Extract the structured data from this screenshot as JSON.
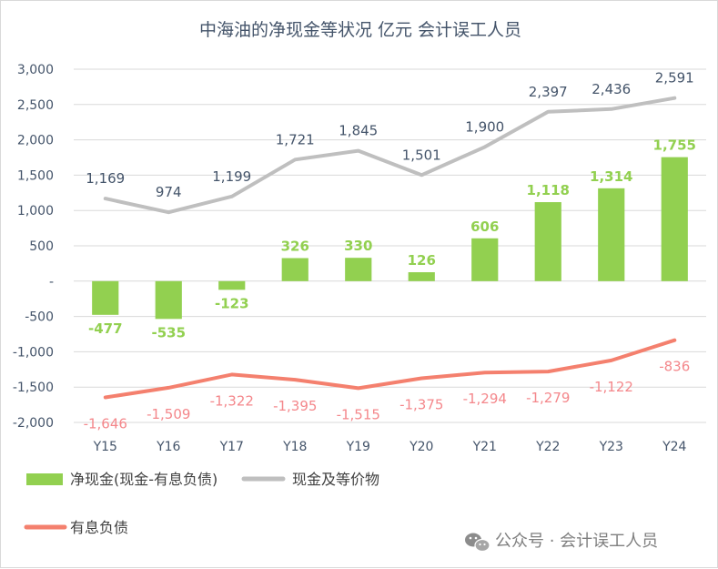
{
  "chart_data": {
    "type": "bar+line",
    "title": "中海油的净现金等状况 亿元 会计误工人员",
    "categories": [
      "Y15",
      "Y16",
      "Y17",
      "Y18",
      "Y19",
      "Y20",
      "Y21",
      "Y22",
      "Y23",
      "Y24"
    ],
    "ylim": [
      -2000,
      3000
    ],
    "yticks": [
      3000,
      2500,
      2000,
      1500,
      1000,
      500,
      0,
      -500,
      -1000,
      -1500,
      -2000
    ],
    "ytick_labels": [
      "3,000",
      "2,500",
      "2,000",
      "1,500",
      "1,000",
      "500",
      "-",
      "-500",
      "-1,000",
      "-1,500",
      "-2,000"
    ],
    "grid": true,
    "legend_position": "bottom",
    "series": [
      {
        "name": "净现金(现金-有息负债)",
        "kind": "bar",
        "color": "#92D050",
        "values": [
          -477,
          -535,
          -123,
          326,
          330,
          126,
          606,
          1118,
          1314,
          1755
        ],
        "labels": [
          "-477",
          "-535",
          "-123",
          "326",
          "330",
          "126",
          "606",
          "1,118",
          "1,314",
          "1,755"
        ]
      },
      {
        "name": "现金及等价物",
        "kind": "line",
        "color": "#BFBFBF",
        "values": [
          1169,
          974,
          1199,
          1721,
          1845,
          1501,
          1900,
          2397,
          2436,
          2591
        ],
        "labels": [
          "1,169",
          "974",
          "1,199",
          "1,721",
          "1,845",
          "1,501",
          "1,900",
          "2,397",
          "2,436",
          "2,591"
        ]
      },
      {
        "name": "有息负债",
        "kind": "line",
        "color": "#F4806E",
        "values": [
          -1646,
          -1509,
          -1322,
          -1395,
          -1515,
          -1375,
          -1294,
          -1279,
          -1122,
          -836
        ],
        "labels": [
          "-1,646",
          "-1,509",
          "-1,322",
          "-1,395",
          "-1,515",
          "-1,375",
          "-1,294",
          "-1,279",
          "-1,122",
          "-836"
        ]
      }
    ]
  },
  "watermark": {
    "text": "公众号 · 会计误工人员",
    "icon": "wechat-icon"
  }
}
